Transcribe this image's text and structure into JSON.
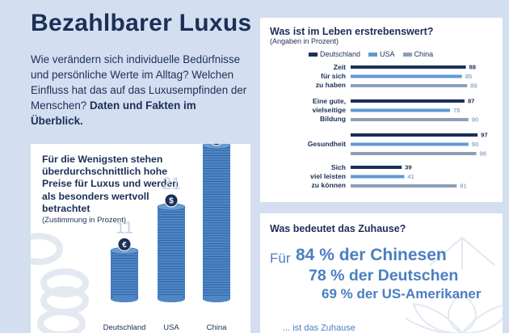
{
  "page": {
    "title": "Bezahlbarer Luxus",
    "intro": "Wie verändern sich individuelle Bedürfnisse und persönliche Werte im Alltag? Welchen Einfluss hat das auf das Luxusempfinden der Menschen?",
    "intro_bold": "Daten und Fakten im Überblick."
  },
  "coins_card": {
    "title": "Für die Wenigsten stehen überdurchschnittlich hohe Preise für Luxus und werden als besonders wertvoll betrachtet",
    "subtitle": "(Zustimmung in Prozent)"
  },
  "bars_card": {
    "title": "Was ist im Leben erstrebenswert?",
    "subtitle": "(Angaben in Prozent)"
  },
  "home_card": {
    "title": "Was bedeutet das Zuhause?",
    "prefix": "Für",
    "lines": [
      "84 % der Chinesen",
      "78 % der Deutschen",
      "69 % der US-Amerikaner"
    ],
    "footer": "... ist das Zuhause"
  },
  "chart_data": [
    {
      "type": "bar",
      "title": "Für die Wenigsten stehen überdurchschnittlich hohe Preise für Luxus und werden als besonders wertvoll betrachtet",
      "subtitle": "(Zustimmung in Prozent)",
      "categories": [
        "Deutschland",
        "USA",
        "China"
      ],
      "values": [
        11,
        21,
        35
      ],
      "icons": [
        "euro-coin-icon",
        "dollar-coin-icon",
        "yen-coin-icon"
      ],
      "colors": {
        "coin": "#4f86c6",
        "coin_edge": "#2c5f9e",
        "label": "#c5d3e8",
        "top_coin": "#1b2f57"
      }
    },
    {
      "type": "bar",
      "orientation": "horizontal",
      "title": "Was ist im Leben erstrebenswert?",
      "subtitle": "(Angaben in Prozent)",
      "categories": [
        "Zeit für sich zu haben",
        "Eine gute, vielseitige Bildung",
        "Gesundheit",
        "Sich viel leisten zu können"
      ],
      "category_lines": [
        [
          "Zeit",
          "für sich",
          "zu haben"
        ],
        [
          "Eine gute,",
          "vielseitige",
          "Bildung"
        ],
        [
          "Gesundheit"
        ],
        [
          "Sich",
          "viel leisten",
          "zu können"
        ]
      ],
      "series": [
        {
          "name": "Deutschland",
          "values": [
            88,
            87,
            97,
            39
          ],
          "color": "#1b2f57"
        },
        {
          "name": "USA",
          "values": [
            85,
            76,
            90,
            41
          ],
          "color": "#5f9ad6"
        },
        {
          "name": "China",
          "values": [
            89,
            90,
            96,
            81
          ],
          "color": "#8d9fb8"
        }
      ],
      "xlim": [
        0,
        100
      ],
      "legend": "top"
    }
  ]
}
